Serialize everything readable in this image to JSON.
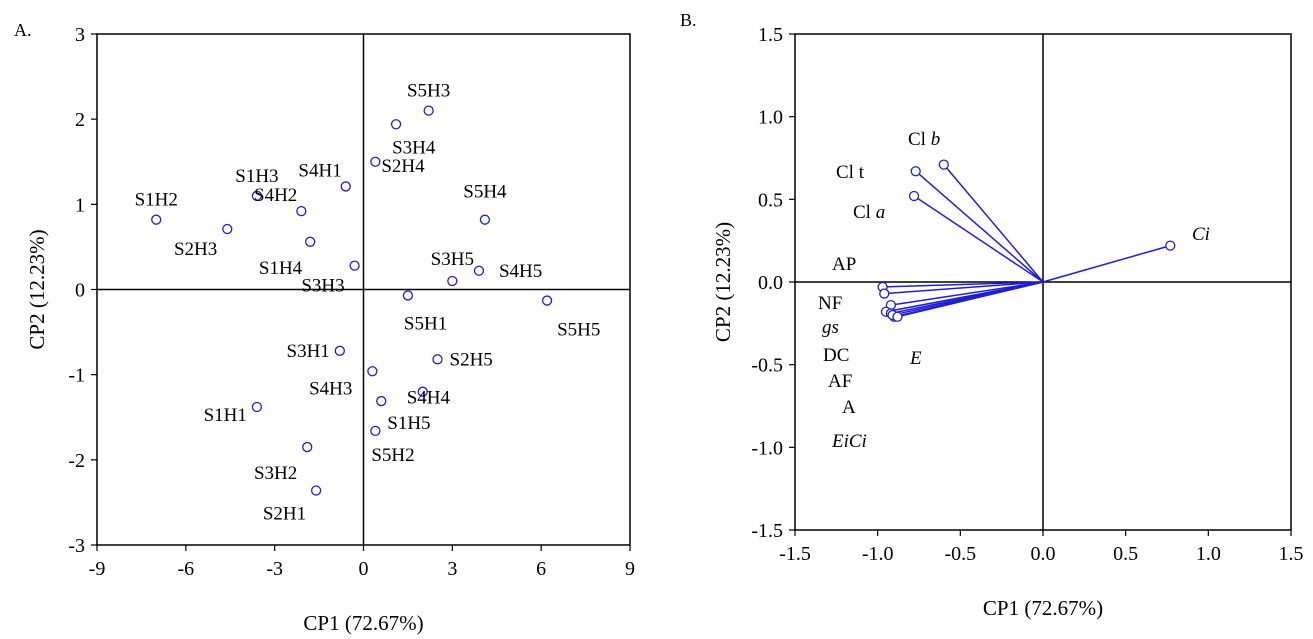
{
  "chart_data": [
    {
      "panel": "A.",
      "type": "scatter",
      "xlabel": "CP1 (72.67%)",
      "ylabel": "CP2 (12.23%)",
      "xlim": [
        -9,
        9
      ],
      "ylim": [
        -3,
        3
      ],
      "xticks": [
        "-9",
        "-6",
        "-3",
        "0",
        "3",
        "6",
        "9"
      ],
      "yticks": [
        "3",
        "2",
        "1",
        "0",
        "-1",
        "-2",
        "-3"
      ],
      "points": [
        {
          "label": "S5H3",
          "x": 2.2,
          "y": 2.1
        },
        {
          "label": "S3H4",
          "x": 1.1,
          "y": 1.94
        },
        {
          "label": "S2H4",
          "x": 0.4,
          "y": 1.5
        },
        {
          "label": "S4H1",
          "x": -0.6,
          "y": 1.21
        },
        {
          "label": "S1H3",
          "x": -3.6,
          "y": 1.1
        },
        {
          "label": "S4H2",
          "x": -2.1,
          "y": 0.92
        },
        {
          "label": "S1H2",
          "x": -7.0,
          "y": 0.82
        },
        {
          "label": "S2H3",
          "x": -4.6,
          "y": 0.71
        },
        {
          "label": "S5H4",
          "x": 4.1,
          "y": 0.82
        },
        {
          "label": "S1H4",
          "x": -1.8,
          "y": 0.56
        },
        {
          "label": "S3H3",
          "x": -0.3,
          "y": 0.28
        },
        {
          "label": "S4H5",
          "x": 3.9,
          "y": 0.22
        },
        {
          "label": "S3H5",
          "x": 3.0,
          "y": 0.1
        },
        {
          "label": "S5H1",
          "x": 1.5,
          "y": -0.07
        },
        {
          "label": "S5H5",
          "x": 6.2,
          "y": -0.13
        },
        {
          "label": "S3H1",
          "x": -0.8,
          "y": -0.72
        },
        {
          "label": "S2H5",
          "x": 2.5,
          "y": -0.82
        },
        {
          "label": "S4H3",
          "x": 0.3,
          "y": -0.96
        },
        {
          "label": "S4H4",
          "x": 2.0,
          "y": -1.2
        },
        {
          "label": "S1H1",
          "x": -3.6,
          "y": -1.38
        },
        {
          "label": "S1H5",
          "x": 0.6,
          "y": -1.31
        },
        {
          "label": "S5H2",
          "x": 0.4,
          "y": -1.66
        },
        {
          "label": "S3H2",
          "x": -1.9,
          "y": -1.85
        },
        {
          "label": "S2H1",
          "x": -1.6,
          "y": -2.36
        }
      ]
    },
    {
      "panel": "B.",
      "type": "biplot",
      "xlabel": "CP1 (72.67%)",
      "ylabel": "CP2 (12.23%)",
      "xlim": [
        -1.5,
        1.5
      ],
      "ylim": [
        -1.5,
        1.5
      ],
      "xticks": [
        "-1.5",
        "-1.0",
        "-0.5",
        "0.0",
        "0.5",
        "1.0",
        "1.5"
      ],
      "yticks": [
        "1.5",
        "1.0",
        "0.5",
        "0.0",
        "-0.5",
        "-1.0",
        "-1.5"
      ],
      "vector_color": "#1f1fd0",
      "vectors": [
        {
          "name": "Cl b",
          "x": -0.6,
          "y": 0.71
        },
        {
          "name": "Cl t",
          "x": -0.77,
          "y": 0.67
        },
        {
          "name": "Cl a",
          "x": -0.78,
          "y": 0.52
        },
        {
          "name": "Ci",
          "x": 0.77,
          "y": 0.22
        },
        {
          "name": "AP",
          "x": -0.97,
          "y": -0.03
        },
        {
          "name": "NF",
          "x": -0.96,
          "y": -0.07
        },
        {
          "name": "gs",
          "x": -0.92,
          "y": -0.14
        },
        {
          "name": "DC",
          "x": -0.95,
          "y": -0.18
        },
        {
          "name": "AF",
          "x": -0.92,
          "y": -0.19
        },
        {
          "name": "A",
          "x": -0.9,
          "y": -0.21
        },
        {
          "name": "EiCi",
          "x": -0.91,
          "y": -0.2
        },
        {
          "name": "E",
          "x": -0.88,
          "y": -0.21
        }
      ],
      "variable_labels": [
        {
          "id": "clb",
          "base": "Cl ",
          "italic": "b"
        },
        {
          "id": "clt",
          "base": "Cl t",
          "italic": ""
        },
        {
          "id": "cla",
          "base": "Cl ",
          "italic": "a"
        },
        {
          "id": "ci",
          "base": "",
          "italic": "Ci"
        },
        {
          "id": "ap",
          "base": "AP",
          "italic": ""
        },
        {
          "id": "nf",
          "base": "NF",
          "italic": ""
        },
        {
          "id": "gs",
          "base": "",
          "italic": "gs"
        },
        {
          "id": "dc",
          "base": "DC",
          "italic": ""
        },
        {
          "id": "af",
          "base": "AF",
          "italic": ""
        },
        {
          "id": "a",
          "base": "A",
          "italic": ""
        },
        {
          "id": "eici",
          "base": "",
          "italic": "EiCi"
        },
        {
          "id": "e",
          "base": "",
          "italic": "E"
        }
      ]
    }
  ],
  "marker_color": "#1f1fd0"
}
